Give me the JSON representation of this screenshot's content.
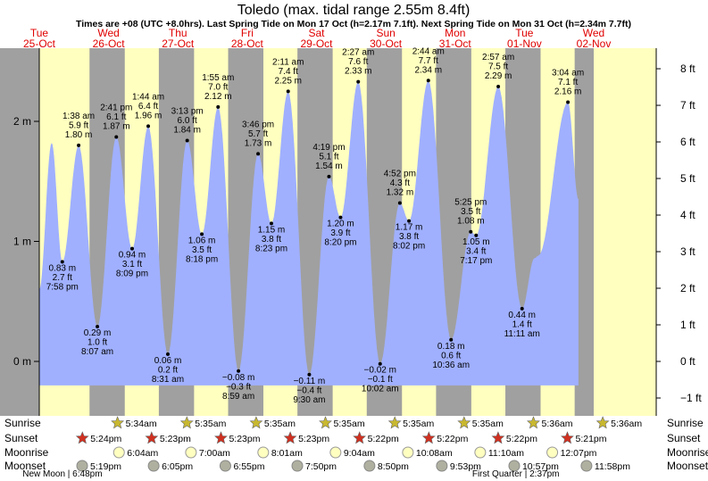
{
  "title": "Toledo (max. tidal range 2.55m 8.4ft)",
  "subtitle": "Times are +08 (UTC +8.0hrs). Last Spring Tide on Mon 17 Oct (h=2.17m 7.1ft). Next Spring Tide on Mon 31 Oct (h=2.34m 7.7ft)",
  "colors": {
    "day": "#ffffc0",
    "night": "#a0a0a0",
    "water": "#a0b0ff",
    "date": "#e00000",
    "text": "#000000",
    "sunrise_star": "#c8b830",
    "sunset_star": "#d03020",
    "moonrise_circle": "#ffffc0",
    "moonset_circle": "#b0b0a0"
  },
  "chart_data": {
    "type": "area",
    "title": "Toledo (max. tidal range 2.55m 8.4ft)",
    "left_axis": {
      "unit": "m",
      "range": [
        -0.45,
        2.63
      ],
      "ticks": [
        {
          "value": 0,
          "label": "0 m"
        },
        {
          "value": 1,
          "label": "1 m"
        },
        {
          "value": 2,
          "label": "2 m"
        }
      ]
    },
    "right_axis": {
      "unit": "ft",
      "ticks": [
        {
          "value": -1,
          "label": "−1 ft"
        },
        {
          "value": 0,
          "label": "0 ft"
        },
        {
          "value": 1,
          "label": "1 ft"
        },
        {
          "value": 2,
          "label": "2 ft"
        },
        {
          "value": 3,
          "label": "3 ft"
        },
        {
          "value": 4,
          "label": "4 ft"
        },
        {
          "value": 5,
          "label": "5 ft"
        },
        {
          "value": 6,
          "label": "6 ft"
        },
        {
          "value": 7,
          "label": "7 ft"
        },
        {
          "value": 8,
          "label": "8 ft"
        }
      ]
    },
    "x_range_hours": [
      0,
      192
    ],
    "days": [
      {
        "dow": "Tue",
        "date": "25-Oct",
        "start": 0
      },
      {
        "dow": "Wed",
        "date": "26-Oct",
        "start": 24
      },
      {
        "dow": "Thu",
        "date": "27-Oct",
        "start": 48
      },
      {
        "dow": "Fri",
        "date": "28-Oct",
        "start": 72
      },
      {
        "dow": "Sat",
        "date": "29-Oct",
        "start": 96
      },
      {
        "dow": "Sun",
        "date": "30-Oct",
        "start": 120
      },
      {
        "dow": "Mon",
        "date": "31-Oct",
        "start": 144
      },
      {
        "dow": "Tue",
        "date": "01-Nov",
        "start": 168
      },
      {
        "dow": "Wed",
        "date": "02-Nov",
        "start": 192
      }
    ],
    "nights": [
      [
        17.4,
        29.6
      ],
      [
        41.4,
        53.6
      ],
      [
        65.4,
        77.6
      ],
      [
        89.4,
        101.6
      ],
      [
        113.4,
        125.6
      ],
      [
        137.4,
        149.6
      ],
      [
        161.4,
        173.6
      ],
      [
        185.4,
        192
      ]
    ],
    "tides": [
      {
        "t": 7.97,
        "h": 0.83,
        "time": "7:58 pm",
        "m": "0.83 m",
        "ft": "2.7 ft",
        "type": "low"
      },
      {
        "t": 13.63,
        "h": 1.8,
        "time": "1:38 am",
        "m": "1.80 m",
        "ft": "5.9 ft",
        "type": "high"
      },
      {
        "t": 20.12,
        "h": 0.29,
        "time": "8:07 am",
        "m": "0.29 m",
        "ft": "1.0 ft",
        "type": "low"
      },
      {
        "t": 26.68,
        "h": 1.87,
        "time": "2:41 pm",
        "m": "1.87 m",
        "ft": "6.1 ft",
        "type": "high"
      },
      {
        "t": 32.15,
        "h": 0.94,
        "time": "8:09 pm",
        "m": "0.94 m",
        "ft": "3.1 ft",
        "type": "low"
      },
      {
        "t": 37.73,
        "h": 1.96,
        "time": "1:44 am",
        "m": "1.96 m",
        "ft": "6.4 ft",
        "type": "high"
      },
      {
        "t": 44.52,
        "h": 0.06,
        "time": "8:31 am",
        "m": "0.06 m",
        "ft": "0.2 ft",
        "type": "low"
      },
      {
        "t": 51.22,
        "h": 1.84,
        "time": "3:13 pm",
        "m": "1.84 m",
        "ft": "6.0 ft",
        "type": "high"
      },
      {
        "t": 56.3,
        "h": 1.06,
        "time": "8:18 pm",
        "m": "1.06 m",
        "ft": "3.5 ft",
        "type": "low"
      },
      {
        "t": 61.92,
        "h": 2.12,
        "time": "1:55 am",
        "m": "2.12 m",
        "ft": "7.0 ft",
        "type": "high"
      },
      {
        "t": 68.98,
        "h": -0.08,
        "time": "8:59 am",
        "m": "−0.08 m",
        "ft": "−0.3 ft",
        "type": "low"
      },
      {
        "t": 75.77,
        "h": 1.73,
        "time": "3:46 pm",
        "m": "1.73 m",
        "ft": "5.7 ft",
        "type": "high"
      },
      {
        "t": 80.38,
        "h": 1.15,
        "time": "8:23 pm",
        "m": "1.15 m",
        "ft": "3.8 ft",
        "type": "low"
      },
      {
        "t": 86.18,
        "h": 2.25,
        "time": "2:11 am",
        "m": "2.25 m",
        "ft": "7.4 ft",
        "type": "high"
      },
      {
        "t": 93.5,
        "h": -0.11,
        "time": "9:30 am",
        "m": "−0.11 m",
        "ft": "−0.4 ft",
        "type": "low"
      },
      {
        "t": 100.32,
        "h": 1.54,
        "time": "4:19 pm",
        "m": "1.54 m",
        "ft": "5.1 ft",
        "type": "high"
      },
      {
        "t": 104.33,
        "h": 1.2,
        "time": "8:20 pm",
        "m": "1.20 m",
        "ft": "3.9 ft",
        "type": "low"
      },
      {
        "t": 110.45,
        "h": 2.33,
        "time": "2:27 am",
        "m": "2.33 m",
        "ft": "7.6 ft",
        "type": "high"
      },
      {
        "t": 118.03,
        "h": -0.02,
        "time": "10:02 am",
        "m": "−0.02 m",
        "ft": "−0.1 ft",
        "type": "low"
      },
      {
        "t": 124.87,
        "h": 1.32,
        "time": "4:52 pm",
        "m": "1.32 m",
        "ft": "4.3 ft",
        "type": "high"
      },
      {
        "t": 128.03,
        "h": 1.17,
        "time": "8:02 pm",
        "m": "1.17 m",
        "ft": "3.8 ft",
        "type": "low"
      },
      {
        "t": 134.73,
        "h": 2.34,
        "time": "2:44 am",
        "m": "2.34 m",
        "ft": "7.7 ft",
        "type": "high"
      },
      {
        "t": 142.6,
        "h": 0.18,
        "time": "10:36 am",
        "m": "0.18 m",
        "ft": "0.6 ft",
        "type": "low"
      },
      {
        "t": 149.42,
        "h": 1.08,
        "time": "5:25 pm",
        "m": "1.08 m",
        "ft": "3.5 ft",
        "type": "high"
      },
      {
        "t": 151.28,
        "h": 1.05,
        "time": "7:17 pm",
        "m": "1.05 m",
        "ft": "3.4 ft",
        "type": "low"
      },
      {
        "t": 158.95,
        "h": 2.29,
        "time": "2:57 am",
        "m": "2.29 m",
        "ft": "7.5 ft",
        "type": "high"
      },
      {
        "t": 167.18,
        "h": 0.44,
        "time": "11:11 am",
        "m": "0.44 m",
        "ft": "1.4 ft",
        "type": "low"
      },
      {
        "t": 183.07,
        "h": 2.16,
        "time": "3:04 am",
        "m": "2.16 m",
        "ft": "7.1 ft",
        "type": "high"
      }
    ],
    "curve_extras": [
      {
        "t": 0,
        "h": 0.6
      },
      {
        "t": 4.3,
        "h": 1.82
      },
      {
        "t": 171.5,
        "h": 0.86
      },
      {
        "t": 172.8,
        "h": 0.88
      },
      {
        "t": 186.7,
        "h": 1.35
      }
    ]
  },
  "rows": {
    "labels": [
      "Sunrise",
      "Sunset",
      "Moonrise",
      "Moonset"
    ],
    "sunrise": [
      {
        "t": 29.57,
        "label": "5:34am"
      },
      {
        "t": 53.58,
        "label": "5:35am"
      },
      {
        "t": 77.58,
        "label": "5:35am"
      },
      {
        "t": 101.58,
        "label": "5:35am"
      },
      {
        "t": 125.58,
        "label": "5:35am"
      },
      {
        "t": 149.58,
        "label": "5:35am"
      },
      {
        "t": 173.6,
        "label": "5:36am"
      },
      {
        "t": 197.6,
        "label": "5:36am"
      }
    ],
    "sunset": [
      {
        "t": 17.4,
        "label": "5:24pm"
      },
      {
        "t": 41.38,
        "label": "5:23pm"
      },
      {
        "t": 65.38,
        "label": "5:23pm"
      },
      {
        "t": 89.38,
        "label": "5:23pm"
      },
      {
        "t": 113.37,
        "label": "5:22pm"
      },
      {
        "t": 137.37,
        "label": "5:22pm"
      },
      {
        "t": 161.37,
        "label": "5:22pm"
      },
      {
        "t": 185.35,
        "label": "5:21pm"
      }
    ],
    "moonrise": [
      {
        "t": 30.07,
        "label": "6:04am"
      },
      {
        "t": 55.0,
        "label": "7:00am"
      },
      {
        "t": 80.02,
        "label": "8:01am"
      },
      {
        "t": 105.07,
        "label": "9:04am"
      },
      {
        "t": 130.13,
        "label": "10:08am"
      },
      {
        "t": 155.17,
        "label": "11:10am"
      },
      {
        "t": 180.12,
        "label": "12:07pm"
      }
    ],
    "moonset": [
      {
        "t": 17.32,
        "label": "5:19pm"
      },
      {
        "t": 42.08,
        "label": "6:05pm"
      },
      {
        "t": 66.92,
        "label": "6:55pm"
      },
      {
        "t": 91.83,
        "label": "7:50pm"
      },
      {
        "t": 116.83,
        "label": "8:50pm"
      },
      {
        "t": 141.88,
        "label": "9:53pm"
      },
      {
        "t": 166.95,
        "label": "10:57pm"
      },
      {
        "t": 191.97,
        "label": "11:58pm"
      }
    ],
    "moon_phases": [
      {
        "t": 8,
        "label": "New Moon | 6:48pm"
      },
      {
        "t": 165,
        "label": "First Quarter | 2:37pm"
      }
    ]
  }
}
